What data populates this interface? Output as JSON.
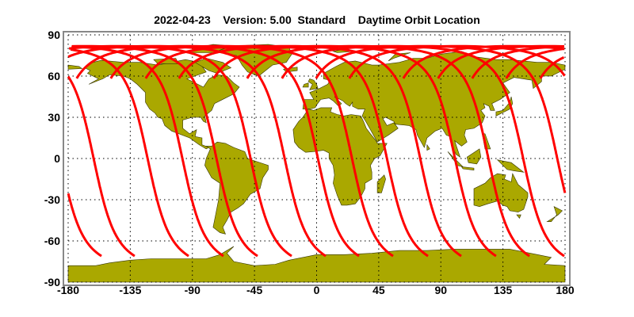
{
  "map": {
    "title": "2022-04-23    Version: 5.00  Standard    Daytime Orbit Location",
    "projection": "equirectangular",
    "lon_range": [
      -180,
      180
    ],
    "lat_range": [
      -90,
      90
    ],
    "grid": true,
    "x_ticks": [
      {
        "value": -180,
        "label": "-180"
      },
      {
        "value": -135,
        "label": "-135"
      },
      {
        "value": -90,
        "label": "-90"
      },
      {
        "value": -45,
        "label": "-45"
      },
      {
        "value": 0,
        "label": "0"
      },
      {
        "value": 45,
        "label": "45"
      },
      {
        "value": 90,
        "label": "90"
      },
      {
        "value": 135,
        "label": "135"
      },
      {
        "value": 180,
        "label": "180"
      }
    ],
    "y_ticks": [
      {
        "value": 90,
        "label": "90"
      },
      {
        "value": 60,
        "label": "60"
      },
      {
        "value": 30,
        "label": "30"
      },
      {
        "value": 0,
        "label": "0"
      },
      {
        "value": -30,
        "label": "-30"
      },
      {
        "value": -60,
        "label": "-60"
      },
      {
        "value": -90,
        "label": "-90"
      }
    ],
    "colors": {
      "land": "#AAA800",
      "coast": "#333300",
      "orbit": "#FF0000",
      "frame": "#888888"
    },
    "orbit_tracks_south_end": {
      "lat": -71,
      "lons": [
        179.4,
        154.2,
        130.0,
        104.8,
        80.7,
        55.4,
        30.7,
        6.6,
        -18.1,
        -42.8,
        -67.5,
        -92.7,
        -131.8,
        -155.9
      ]
    }
  }
}
